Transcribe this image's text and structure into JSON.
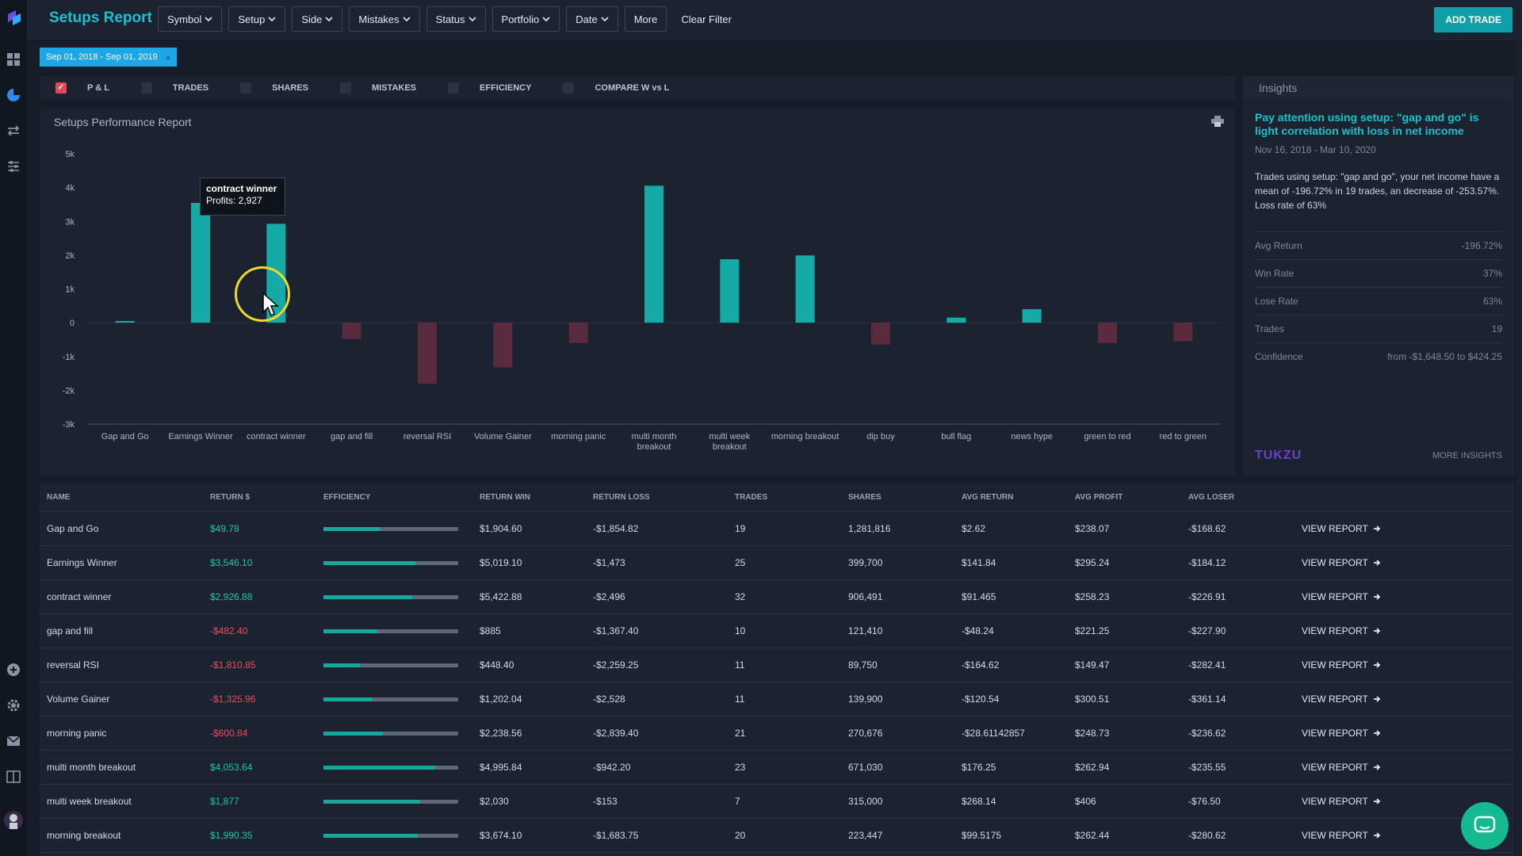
{
  "header": {
    "title": "Setups Report",
    "filters": [
      "Symbol",
      "Setup",
      "Side",
      "Mistakes",
      "Status",
      "Portfolio",
      "Date"
    ],
    "more_label": "More",
    "clear_label": "Clear Filter",
    "add_trade_label": "ADD TRADE"
  },
  "date_chip": {
    "label": "Sep 01, 2018 - Sep 01, 2019",
    "close": "×"
  },
  "metrics": [
    {
      "label": "P & L",
      "checked": true
    },
    {
      "label": "TRADES",
      "checked": false
    },
    {
      "label": "SHARES",
      "checked": false
    },
    {
      "label": "MISTAKES",
      "checked": false
    },
    {
      "label": "EFFICIENCY",
      "checked": false
    },
    {
      "label": "COMPARE W vs L",
      "checked": false
    }
  ],
  "chart_panel": {
    "title": "Setups Performance Report"
  },
  "chart_data": {
    "type": "bar",
    "categories": [
      "Gap and Go",
      "Earnings Winner",
      "contract winner",
      "gap and fill",
      "reversal RSI",
      "Volume Gainer",
      "morning panic",
      "multi month breakout",
      "multi week breakout",
      "morning breakout",
      "dip buy",
      "bull flag",
      "news hype",
      "green to red",
      "red to green"
    ],
    "category_lines": [
      [
        "Gap and Go"
      ],
      [
        "Earnings Winner"
      ],
      [
        "contract winner"
      ],
      [
        "gap and fill"
      ],
      [
        "reversal RSI"
      ],
      [
        "Volume Gainer"
      ],
      [
        "morning panic"
      ],
      [
        "multi month",
        "breakout"
      ],
      [
        "multi week",
        "breakout"
      ],
      [
        "morning breakout"
      ],
      [
        "dip buy"
      ],
      [
        "bull flag"
      ],
      [
        "news hype"
      ],
      [
        "green to red"
      ],
      [
        "red to green"
      ]
    ],
    "values": [
      49.78,
      3546.1,
      2926.88,
      -482.4,
      -1810.85,
      -1325.96,
      -600.84,
      4053.64,
      1877,
      1990.35,
      -650,
      150,
      400,
      -600,
      -550
    ],
    "ylim": [
      -3000,
      5000
    ],
    "yticks": [
      -3000,
      -2000,
      -1000,
      0,
      1000,
      2000,
      3000,
      4000,
      5000
    ],
    "ytick_labels": [
      "-3k",
      "-2k",
      "-1k",
      "0",
      "1k",
      "2k",
      "3k",
      "4k",
      "5k"
    ],
    "positive_color": "#16aaa7",
    "negative_color": "#5a2a3d",
    "tooltip": {
      "name": "contract winner",
      "text": "Profits: 2,927"
    }
  },
  "insights": {
    "header": "Insights",
    "title": "Pay attention using setup: \"gap and go\" is light correlation with loss in net income",
    "date_range": "Nov 16, 2018 - Mar 10, 2020",
    "description": "Trades using setup: \"gap and go\", your net income have a mean of -196.72% in 19 trades, an decrease of -253.57%. Loss rate of 63%",
    "stats": [
      {
        "label": "Avg Return",
        "value": "-196.72%"
      },
      {
        "label": "Win Rate",
        "value": "37%"
      },
      {
        "label": "Lose Rate",
        "value": "63%"
      },
      {
        "label": "Trades",
        "value": "19"
      },
      {
        "label": "Confidence",
        "value": "from -$1,648.50 to $424.25"
      }
    ],
    "brand": "TUKZU",
    "more_label": "MORE INSIGHTS"
  },
  "table": {
    "columns": [
      "NAME",
      "RETURN $",
      "EFFICIENCY",
      "RETURN WIN",
      "RETURN LOSS",
      "TRADES",
      "SHARES",
      "AVG RETURN",
      "AVG PROFIT",
      "AVG LOSER"
    ],
    "view_label": "VIEW REPORT",
    "rows": [
      {
        "name": "Gap and Go",
        "ret": "$49.78",
        "eff": 0.42,
        "win": "$1,904.60",
        "loss": "-$1,854.82",
        "trades": "19",
        "shares": "1,281,816",
        "avg_return": "$2.62",
        "avg_profit": "$238.07",
        "avg_loser": "-$168.62"
      },
      {
        "name": "Earnings Winner",
        "ret": "$3,546.10",
        "eff": 0.68,
        "win": "$5,019.10",
        "loss": "-$1,473",
        "trades": "25",
        "shares": "399,700",
        "avg_return": "$141.84",
        "avg_profit": "$295.24",
        "avg_loser": "-$184.12"
      },
      {
        "name": "contract winner",
        "ret": "$2,926.88",
        "eff": 0.66,
        "win": "$5,422.88",
        "loss": "-$2,496",
        "trades": "32",
        "shares": "906,491",
        "avg_return": "$91.465",
        "avg_profit": "$258.23",
        "avg_loser": "-$226.91"
      },
      {
        "name": "gap and fill",
        "ret": "-$482.40",
        "eff": 0.4,
        "win": "$885",
        "loss": "-$1,367.40",
        "trades": "10",
        "shares": "121,410",
        "avg_return": "-$48.24",
        "avg_profit": "$221.25",
        "avg_loser": "-$227.90"
      },
      {
        "name": "reversal RSI",
        "ret": "-$1,810.85",
        "eff": 0.27,
        "win": "$448.40",
        "loss": "-$2,259.25",
        "trades": "11",
        "shares": "89,750",
        "avg_return": "-$164.62",
        "avg_profit": "$149.47",
        "avg_loser": "-$282.41"
      },
      {
        "name": "Volume Gainer",
        "ret": "-$1,325.96",
        "eff": 0.36,
        "win": "$1,202.04",
        "loss": "-$2,528",
        "trades": "11",
        "shares": "139,900",
        "avg_return": "-$120.54",
        "avg_profit": "$300.51",
        "avg_loser": "-$361.14"
      },
      {
        "name": "morning panic",
        "ret": "-$600.84",
        "eff": 0.44,
        "win": "$2,238.56",
        "loss": "-$2,839.40",
        "trades": "21",
        "shares": "270,676",
        "avg_return": "-$28.61142857",
        "avg_profit": "$248.73",
        "avg_loser": "-$236.62"
      },
      {
        "name": "multi month breakout",
        "ret": "$4,053.64",
        "eff": 0.83,
        "win": "$4,995.84",
        "loss": "-$942.20",
        "trades": "23",
        "shares": "671,030",
        "avg_return": "$176.25",
        "avg_profit": "$262.94",
        "avg_loser": "-$235.55"
      },
      {
        "name": "multi week breakout",
        "ret": "$1,877",
        "eff": 0.72,
        "win": "$2,030",
        "loss": "-$153",
        "trades": "7",
        "shares": "315,000",
        "avg_return": "$268.14",
        "avg_profit": "$406",
        "avg_loser": "-$76.50"
      },
      {
        "name": "morning breakout",
        "ret": "$1,990.35",
        "eff": 0.7,
        "win": "$3,674.10",
        "loss": "-$1,683.75",
        "trades": "20",
        "shares": "223,447",
        "avg_return": "$99.5175",
        "avg_profit": "$262.44",
        "avg_loser": "-$280.62"
      }
    ]
  },
  "colors": {
    "accent": "#18c2cf",
    "positive": "#1fc7a5",
    "negative": "#f04a5c",
    "chip": "#1fa6e8"
  }
}
